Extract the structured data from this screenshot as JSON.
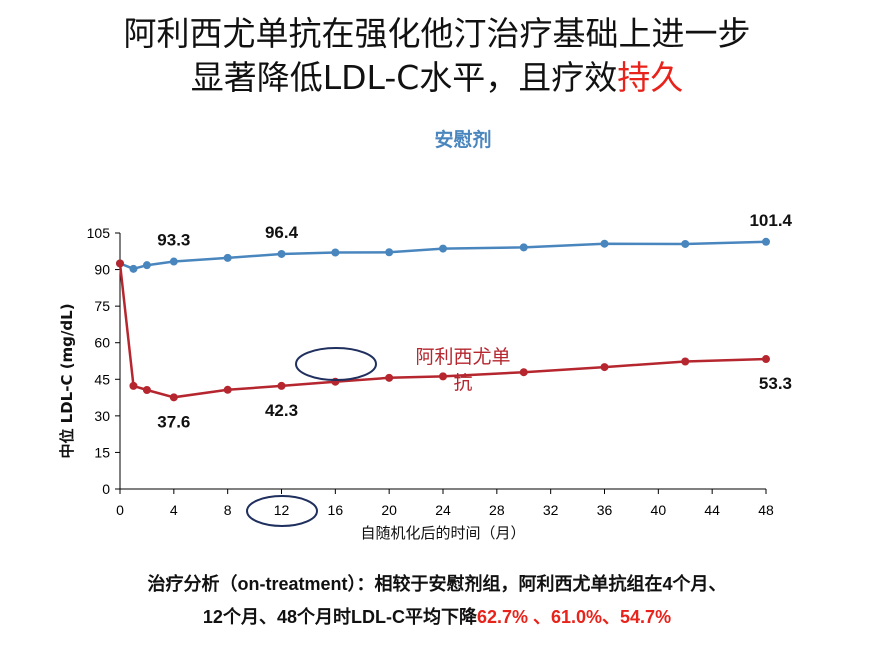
{
  "title_line1": "阿利西尤单抗在强化他汀治疗基础上进一步",
  "title_line2_part1": "显著降低LDL-C水平，且疗效",
  "title_line2_highlight": "持久",
  "footer_line1": "治疗分析（on-treatment）：相较于安慰剂组，阿利西尤单抗组在4个月、",
  "footer_line2_part1": "12个月、48个月时LDL-C平均下降",
  "footer_line2_highlight": "62.7% 、61.0%、54.7%",
  "colors": {
    "placebo": "#4a86be",
    "alirocumab": "#b5262e",
    "highlight": "#e8231b",
    "circle": "#1f2f5e"
  },
  "chart_data": {
    "type": "line",
    "xlabel": "自随机化后的时间（月）",
    "ylabel": "中位 LDL-C (mg/dL)",
    "xlim": [
      0,
      48
    ],
    "ylim": [
      0,
      105
    ],
    "xticks": [
      0,
      4,
      8,
      12,
      16,
      20,
      24,
      28,
      32,
      36,
      40,
      44,
      48
    ],
    "yticks": [
      0,
      15,
      30,
      45,
      60,
      75,
      90,
      105
    ],
    "series": [
      {
        "name": "安慰剂",
        "color": "#4a86be",
        "x": [
          0,
          1,
          2,
          4,
          8,
          12,
          16,
          20,
          24,
          30,
          36,
          42,
          48
        ],
        "y": [
          92.5,
          90.3,
          91.8,
          93.3,
          94.8,
          96.4,
          97.0,
          97.1,
          98.6,
          99.1,
          100.6,
          100.5,
          101.4
        ]
      },
      {
        "name": "阿利西尤单抗",
        "color": "#b5262e",
        "x": [
          0,
          1,
          2,
          4,
          8,
          12,
          16,
          20,
          24,
          30,
          36,
          42,
          48
        ],
        "y": [
          92.5,
          42.3,
          40.6,
          37.6,
          40.7,
          42.3,
          44.0,
          45.6,
          46.2,
          47.9,
          50.0,
          52.3,
          53.3
        ]
      }
    ],
    "data_labels": [
      {
        "series": 0,
        "x": 4,
        "text": "93.3"
      },
      {
        "series": 0,
        "x": 12,
        "text": "96.4"
      },
      {
        "series": 0,
        "x": 48,
        "text": "101.4"
      },
      {
        "series": 1,
        "x": 4,
        "text": "37.6"
      },
      {
        "series": 1,
        "x": 12,
        "text": "42.3"
      },
      {
        "series": 1,
        "x": 48,
        "text": "53.3"
      }
    ],
    "series_labels": [
      {
        "series": 0,
        "lines": [
          "安慰剂"
        ]
      },
      {
        "series": 1,
        "lines": [
          "阿利西尤单",
          "抗"
        ]
      }
    ],
    "highlight_circles": [
      {
        "around": "series1",
        "x": 16
      },
      {
        "around": "x_tick",
        "x": 12
      }
    ]
  }
}
